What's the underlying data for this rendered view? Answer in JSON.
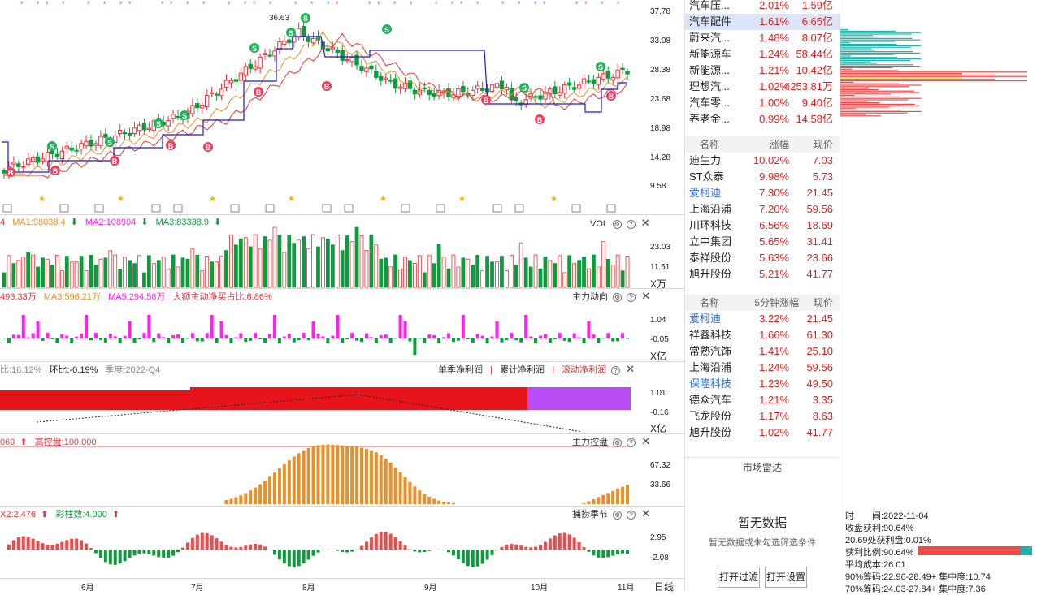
{
  "price_axis": [
    "37.78",
    "33.08",
    "28.38",
    "23.68",
    "18.98",
    "14.28",
    "9.58"
  ],
  "high_label": "36.63",
  "vol_legend": {
    "ma1": "MA1:98038.4",
    "ma2": "MA2:108904",
    "ma3": "MA3:83338.9"
  },
  "vol_title": "VOL",
  "vol_axis": [
    "23.03",
    "11.51"
  ],
  "vol_unit": "X万",
  "flow_legend": {
    "a": "496.33万",
    "ma3": "MA3:596.21万",
    "ma5": "MA5:294.58万",
    "big": "大额主动净买占比:6.86%"
  },
  "flow_title": "主力动向",
  "flow_axis": [
    "1.04",
    "-0.05"
  ],
  "flow_unit": "X亿",
  "profit_legend": {
    "yoy": "比:16.12%",
    "qoq": "环比:-0.19%",
    "season": "季度:2022-Q4"
  },
  "profit_tabs": [
    "单季净利润",
    "累计净利润",
    "滚动净利润"
  ],
  "profit_axis": [
    "1.01",
    "-0.16"
  ],
  "profit_unit": "X亿",
  "ctrl_legend": {
    "a": "069",
    "high": "高控盘:100.000"
  },
  "ctrl_title": "主力控盘",
  "ctrl_axis": [
    "67.32",
    "33.66"
  ],
  "season_legend": {
    "x2": "X2:2.476",
    "bars": "彩柱数:4.000"
  },
  "season_title": "捕捞季节",
  "season_axis": [
    "2.95",
    "-2.08"
  ],
  "months": [
    "6月",
    "7月",
    "8月",
    "9月",
    "10月",
    "11月"
  ],
  "period_label": "日线",
  "sector_rows": [
    {
      "name": "汽车压...",
      "pct": "2.01%",
      "val": "1.59亿"
    },
    {
      "name": "汽车配件",
      "pct": "1.61%",
      "val": "6.65亿"
    },
    {
      "name": "蔚来汽...",
      "pct": "1.48%",
      "val": "8.07亿"
    },
    {
      "name": "新能源车",
      "pct": "1.24%",
      "val": "58.44亿"
    },
    {
      "name": "新能源...",
      "pct": "1.21%",
      "val": "10.42亿"
    },
    {
      "name": "理想汽...",
      "pct": "1.02%",
      "val": "4253.81万"
    },
    {
      "name": "汽车零...",
      "pct": "1.00%",
      "val": "9.40亿"
    },
    {
      "name": "养老金...",
      "pct": "0.99%",
      "val": "14.58亿"
    }
  ],
  "gainers_header": [
    "名称",
    "涨幅",
    "现价"
  ],
  "gainers": [
    {
      "name": "迪生力",
      "pct": "10.02%",
      "val": "7.03"
    },
    {
      "name": "ST众泰",
      "pct": "9.98%",
      "val": "5.73"
    },
    {
      "name": "爱柯迪",
      "pct": "7.30%",
      "val": "21.45"
    },
    {
      "name": "上海沿浦",
      "pct": "7.20%",
      "val": "59.56"
    },
    {
      "name": "川环科技",
      "pct": "6.56%",
      "val": "18.69"
    },
    {
      "name": "立中集团",
      "pct": "5.65%",
      "val": "31.41"
    },
    {
      "name": "泰祥股份",
      "pct": "5.63%",
      "val": "23.66"
    },
    {
      "name": "旭升股份",
      "pct": "5.21%",
      "val": "41.77"
    }
  ],
  "fast_header": [
    "名称",
    "5分钟涨幅",
    "现价"
  ],
  "fast": [
    {
      "name": "爱柯迪",
      "pct": "3.22%",
      "val": "21.45"
    },
    {
      "name": "祥鑫科技",
      "pct": "1.66%",
      "val": "61.30"
    },
    {
      "name": "常熟汽饰",
      "pct": "1.41%",
      "val": "25.10"
    },
    {
      "name": "上海沿浦",
      "pct": "1.24%",
      "val": "59.56"
    },
    {
      "name": "保隆科技",
      "pct": "1.23%",
      "val": "49.50"
    },
    {
      "name": "德众汽车",
      "pct": "1.21%",
      "val": "3.35"
    },
    {
      "name": "飞龙股份",
      "pct": "1.17%",
      "val": "8.63"
    },
    {
      "name": "旭升股份",
      "pct": "1.02%",
      "val": "41.77"
    }
  ],
  "radar": {
    "title": "市场雷达",
    "empty": "暂无数据",
    "hint": "暂无数据或未勾选筛选条件",
    "btn_filter": "打开过滤",
    "btn_settings": "打开设置"
  },
  "chips": {
    "time": "时　　间:2022-11-04",
    "profit": "收盘获利:90.64%",
    "at": "20.69处获利盘:0.01%",
    "ratio": "获利比例:90.64%",
    "avg": "平均成本:26.01",
    "c90": "90%筹码:22.96-28.49+ 集中度:10.74",
    "c70": "70%筹码:24.03-27.84+ 集中度:7.36"
  },
  "colors": {
    "up": "#e8343c",
    "down": "#0e9b3e",
    "magenta": "#ff22ee",
    "orange": "#e8902a",
    "navy": "#1a1ad0",
    "purple": "#b74cf5"
  }
}
